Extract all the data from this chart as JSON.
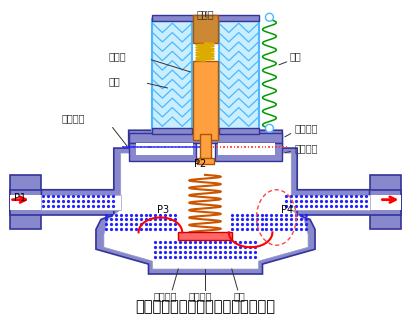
{
  "title": "电磁阀由上海祝茂阀门有限公司提供",
  "bg_color": "#ffffff",
  "body_color": "#8888cc",
  "body_edge": "#333399",
  "coil_bg": "#c8eeff",
  "coil_line": "#4db8ff",
  "iron_color": "#ffa040",
  "spring_orange": "#cc6600",
  "spring_yellow": "#ddaa00",
  "red_color": "#ff0000",
  "red_dashed": "#ff4444",
  "blue_dot": "#2222ff",
  "blue_line": "#2222ff",
  "label_color": "#333333",
  "figsize": [
    4.11,
    3.19
  ],
  "dpi": 100,
  "labels": {
    "ding_tie": "定铁心",
    "dong_tie": "动铁心",
    "xian_quan": "线圈",
    "ping_heng": "平衡孔道",
    "zhu_fa_zuo": "主阀阀座",
    "zhu_fa_xin": "主阀阀芯",
    "mo_pian": "膜片",
    "shou_fa_zuo": "守阀阀座",
    "xie_ya": "泄压孔道",
    "tan_huang": "弹簧",
    "P1": "P1",
    "P2": "P2",
    "P3": "P3",
    "P4": "P4"
  }
}
